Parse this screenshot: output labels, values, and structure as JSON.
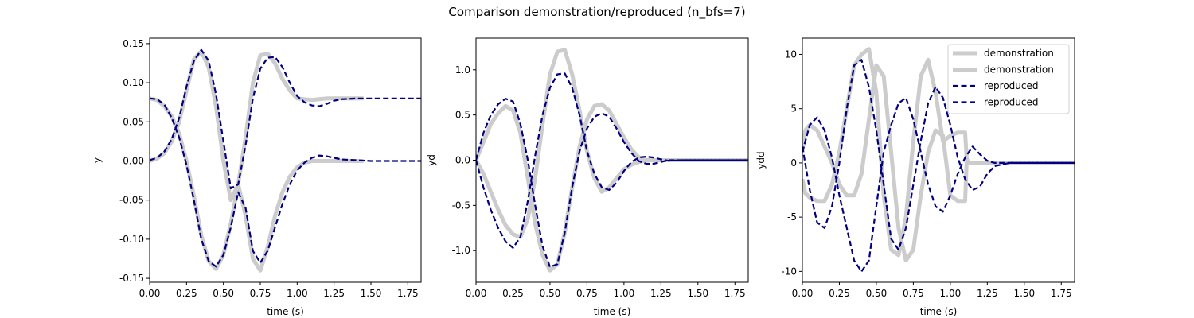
{
  "figure_title": "Comparison demonstration/reproduced  (n_bfs=7)",
  "colors": {
    "demonstration": "#cccccc",
    "reproduced": "#000080"
  },
  "legend_entries": [
    "demonstration",
    "demonstration",
    "reproduced",
    "reproduced"
  ],
  "chart_data": [
    {
      "type": "line",
      "xlabel": "time (s)",
      "ylabel": "y",
      "xlim": [
        0.0,
        1.84
      ],
      "ylim": [
        -0.155,
        0.157
      ],
      "xticks": [
        "0.00",
        "0.25",
        "0.50",
        "0.75",
        "1.00",
        "1.25",
        "1.50",
        "1.75"
      ],
      "yticks": [
        "-0.15",
        "-0.10",
        "-0.05",
        "0.00",
        "0.05",
        "0.10",
        "0.15"
      ],
      "series": [
        {
          "role": "demonstration",
          "x": [
            0,
            0.05,
            0.1,
            0.15,
            0.2,
            0.25,
            0.3,
            0.35,
            0.4,
            0.45,
            0.5,
            0.55,
            0.6,
            0.65,
            0.7,
            0.75,
            0.8,
            0.85,
            0.9,
            0.95,
            1.0,
            1.05,
            1.1,
            1.15,
            1.2,
            1.3,
            1.45
          ],
          "y": [
            0.08,
            0.078,
            0.07,
            0.057,
            0.035,
            0.0,
            -0.045,
            -0.095,
            -0.128,
            -0.138,
            -0.12,
            -0.08,
            -0.03,
            -0.07,
            -0.125,
            -0.14,
            -0.11,
            -0.07,
            -0.04,
            -0.02,
            -0.008,
            -0.002,
            0.0,
            0.0,
            0.0,
            0.0,
            0.0
          ]
        },
        {
          "role": "demonstration",
          "x": [
            0,
            0.05,
            0.1,
            0.15,
            0.2,
            0.25,
            0.3,
            0.35,
            0.4,
            0.45,
            0.5,
            0.55,
            0.6,
            0.65,
            0.7,
            0.75,
            0.8,
            0.85,
            0.9,
            0.95,
            1.0,
            1.05,
            1.1,
            1.15,
            1.2,
            1.3,
            1.45
          ],
          "y": [
            0.0,
            0.003,
            0.01,
            0.025,
            0.05,
            0.09,
            0.13,
            0.14,
            0.12,
            0.07,
            0.0,
            -0.05,
            -0.03,
            0.03,
            0.1,
            0.135,
            0.137,
            0.125,
            0.105,
            0.09,
            0.08,
            0.079,
            0.078,
            0.079,
            0.08,
            0.08,
            0.08
          ]
        },
        {
          "role": "reproduced",
          "x": [
            0,
            0.05,
            0.1,
            0.15,
            0.2,
            0.25,
            0.3,
            0.35,
            0.4,
            0.45,
            0.5,
            0.55,
            0.6,
            0.65,
            0.7,
            0.75,
            0.8,
            0.85,
            0.9,
            0.95,
            1.0,
            1.05,
            1.1,
            1.15,
            1.2,
            1.25,
            1.3,
            1.4,
            1.5,
            1.6,
            1.84
          ],
          "y": [
            0.08,
            0.079,
            0.072,
            0.055,
            0.03,
            -0.005,
            -0.05,
            -0.1,
            -0.128,
            -0.135,
            -0.12,
            -0.085,
            -0.04,
            -0.06,
            -0.115,
            -0.13,
            -0.115,
            -0.085,
            -0.055,
            -0.03,
            -0.012,
            -0.002,
            0.004,
            0.007,
            0.006,
            0.004,
            0.002,
            0.001,
            0.0,
            0.0,
            0.0
          ]
        },
        {
          "role": "reproduced",
          "x": [
            0,
            0.05,
            0.1,
            0.15,
            0.2,
            0.25,
            0.3,
            0.35,
            0.4,
            0.45,
            0.5,
            0.55,
            0.6,
            0.65,
            0.7,
            0.75,
            0.8,
            0.85,
            0.9,
            0.95,
            1.0,
            1.05,
            1.1,
            1.15,
            1.2,
            1.25,
            1.3,
            1.4,
            1.5,
            1.6,
            1.84
          ],
          "y": [
            0.001,
            0.004,
            0.012,
            0.028,
            0.055,
            0.095,
            0.128,
            0.142,
            0.128,
            0.085,
            0.025,
            -0.035,
            -0.03,
            0.02,
            0.08,
            0.118,
            0.132,
            0.133,
            0.12,
            0.1,
            0.083,
            0.075,
            0.071,
            0.07,
            0.073,
            0.077,
            0.079,
            0.08,
            0.08,
            0.08,
            0.08
          ]
        }
      ]
    },
    {
      "type": "line",
      "xlabel": "time (s)",
      "ylabel": "yd",
      "xlim": [
        0.0,
        1.84
      ],
      "ylim": [
        -1.35,
        1.35
      ],
      "xticks": [
        "0.00",
        "0.25",
        "0.50",
        "0.75",
        "1.00",
        "1.25",
        "1.50",
        "1.75"
      ],
      "yticks": [
        "-1.0",
        "-0.5",
        "0.0",
        "0.5",
        "1.0"
      ],
      "series": [
        {
          "role": "demonstration",
          "x": [
            0,
            0.05,
            0.1,
            0.15,
            0.2,
            0.25,
            0.3,
            0.35,
            0.4,
            0.45,
            0.5,
            0.55,
            0.6,
            0.65,
            0.7,
            0.75,
            0.8,
            0.85,
            0.9,
            0.95,
            1.0,
            1.05,
            1.1,
            1.15,
            1.2,
            1.84
          ],
          "y": [
            0.0,
            -0.15,
            -0.35,
            -0.55,
            -0.72,
            -0.82,
            -0.85,
            -0.65,
            -0.2,
            0.4,
            0.95,
            1.2,
            1.22,
            0.95,
            0.55,
            0.1,
            -0.2,
            -0.35,
            -0.3,
            -0.2,
            -0.1,
            -0.05,
            -0.02,
            0.0,
            0.0,
            0.0
          ]
        },
        {
          "role": "demonstration",
          "x": [
            0,
            0.05,
            0.1,
            0.15,
            0.2,
            0.25,
            0.3,
            0.35,
            0.4,
            0.45,
            0.5,
            0.55,
            0.6,
            0.65,
            0.7,
            0.75,
            0.8,
            0.85,
            0.9,
            0.95,
            1.0,
            1.05,
            1.1,
            1.15,
            1.2,
            1.84
          ],
          "y": [
            0.0,
            0.2,
            0.4,
            0.52,
            0.6,
            0.55,
            0.3,
            -0.2,
            -0.7,
            -1.05,
            -1.22,
            -1.15,
            -0.8,
            -0.3,
            0.15,
            0.45,
            0.6,
            0.62,
            0.55,
            0.4,
            0.25,
            0.12,
            0.03,
            0.0,
            0.0,
            0.0
          ]
        },
        {
          "role": "reproduced",
          "x": [
            0,
            0.05,
            0.1,
            0.15,
            0.2,
            0.25,
            0.3,
            0.35,
            0.4,
            0.45,
            0.5,
            0.55,
            0.6,
            0.65,
            0.7,
            0.75,
            0.8,
            0.85,
            0.9,
            0.95,
            1.0,
            1.05,
            1.1,
            1.15,
            1.2,
            1.25,
            1.3,
            1.4,
            1.5,
            1.6,
            1.84
          ],
          "y": [
            0.0,
            -0.3,
            -0.55,
            -0.75,
            -0.9,
            -0.97,
            -0.85,
            -0.45,
            0.05,
            0.5,
            0.8,
            0.95,
            0.96,
            0.8,
            0.5,
            0.1,
            -0.15,
            -0.3,
            -0.33,
            -0.25,
            -0.12,
            -0.02,
            0.03,
            0.04,
            0.03,
            0.01,
            -0.005,
            0.0,
            0.0,
            0.0,
            0.0
          ]
        },
        {
          "role": "reproduced",
          "x": [
            0,
            0.05,
            0.1,
            0.15,
            0.2,
            0.25,
            0.3,
            0.35,
            0.4,
            0.45,
            0.5,
            0.55,
            0.6,
            0.65,
            0.7,
            0.75,
            0.8,
            0.85,
            0.9,
            0.95,
            1.0,
            1.05,
            1.1,
            1.15,
            1.2,
            1.25,
            1.3,
            1.4,
            1.5,
            1.6,
            1.84
          ],
          "y": [
            0.0,
            0.3,
            0.5,
            0.62,
            0.68,
            0.65,
            0.4,
            0.0,
            -0.5,
            -0.95,
            -1.18,
            -1.15,
            -0.8,
            -0.3,
            0.1,
            0.35,
            0.48,
            0.52,
            0.48,
            0.35,
            0.2,
            0.08,
            -0.01,
            -0.04,
            -0.04,
            -0.02,
            0.0,
            0.0,
            0.0,
            0.0,
            0.0
          ]
        }
      ]
    },
    {
      "type": "line",
      "xlabel": "time (s)",
      "ylabel": "ydd",
      "xlim": [
        0.0,
        1.84
      ],
      "ylim": [
        -11.0,
        11.5
      ],
      "xticks": [
        "0.00",
        "0.25",
        "0.50",
        "0.75",
        "1.00",
        "1.25",
        "1.50",
        "1.75"
      ],
      "yticks": [
        "-10",
        "-5",
        "0",
        "5",
        "10"
      ],
      "legend_placement": "top-right",
      "series": [
        {
          "role": "demonstration",
          "x": [
            0,
            0.02,
            0.05,
            0.1,
            0.15,
            0.2,
            0.25,
            0.3,
            0.35,
            0.4,
            0.45,
            0.5,
            0.55,
            0.6,
            0.65,
            0.7,
            0.75,
            0.8,
            0.85,
            0.9,
            0.95,
            1.0,
            1.05,
            1.1,
            1.11,
            1.12,
            1.2,
            1.3,
            1.84
          ],
          "y": [
            1.0,
            3.0,
            3.5,
            3.0,
            1.5,
            0.0,
            -2.0,
            -3.0,
            -3.0,
            -1.0,
            4.0,
            9.0,
            8.0,
            1.0,
            -6.0,
            -9.0,
            -8.0,
            -3.0,
            1.0,
            3.0,
            2.5,
            -3.0,
            -3.5,
            -3.5,
            0.0,
            0.0,
            0.0,
            0.0,
            0.0
          ]
        },
        {
          "role": "demonstration",
          "x": [
            0,
            0.02,
            0.05,
            0.1,
            0.15,
            0.2,
            0.25,
            0.3,
            0.35,
            0.4,
            0.45,
            0.5,
            0.55,
            0.6,
            0.65,
            0.7,
            0.75,
            0.8,
            0.85,
            0.9,
            0.95,
            1.0,
            1.05,
            1.1,
            1.11,
            1.12,
            1.2,
            1.3,
            1.84
          ],
          "y": [
            -1.5,
            -2.8,
            -3.2,
            -3.5,
            -3.5,
            -2.0,
            1.0,
            5.0,
            9.0,
            10.0,
            10.5,
            6.5,
            -3.0,
            -8.0,
            -8.5,
            -5.0,
            2.0,
            8.0,
            9.5,
            6.5,
            2.0,
            2.5,
            2.8,
            2.8,
            0.5,
            0.0,
            0.0,
            0.0,
            0.0
          ]
        },
        {
          "role": "reproduced",
          "x": [
            0,
            0.05,
            0.1,
            0.15,
            0.2,
            0.25,
            0.3,
            0.35,
            0.4,
            0.45,
            0.5,
            0.55,
            0.6,
            0.65,
            0.7,
            0.75,
            0.8,
            0.85,
            0.9,
            0.95,
            1.0,
            1.05,
            1.1,
            1.15,
            1.2,
            1.25,
            1.3,
            1.4,
            1.5,
            1.6,
            1.84
          ],
          "y": [
            1.0,
            3.5,
            4.2,
            3.0,
            0.5,
            -3.0,
            -6.0,
            -9.0,
            -10.0,
            -9.0,
            -4.0,
            1.0,
            3.5,
            5.5,
            6.0,
            4.0,
            1.0,
            -2.0,
            -4.0,
            -4.5,
            -3.0,
            -1.0,
            0.5,
            1.5,
            0.8,
            0.2,
            0.0,
            0.0,
            0.0,
            0.0,
            0.0
          ]
        },
        {
          "role": "reproduced",
          "x": [
            0,
            0.05,
            0.1,
            0.15,
            0.2,
            0.25,
            0.3,
            0.35,
            0.4,
            0.45,
            0.5,
            0.55,
            0.6,
            0.65,
            0.7,
            0.75,
            0.8,
            0.85,
            0.9,
            0.95,
            1.0,
            1.05,
            1.1,
            1.15,
            1.2,
            1.25,
            1.3,
            1.4,
            1.5,
            1.6,
            1.84
          ],
          "y": [
            1.5,
            -2.5,
            -5.5,
            -6.0,
            -4.0,
            0.0,
            5.0,
            9.0,
            9.5,
            7.0,
            3.0,
            -2.0,
            -7.0,
            -8.0,
            -6.0,
            -2.0,
            2.0,
            5.5,
            7.0,
            6.0,
            3.5,
            0.5,
            -1.5,
            -2.5,
            -2.2,
            -1.0,
            -0.3,
            0.0,
            0.0,
            0.0,
            0.0
          ]
        }
      ]
    }
  ]
}
